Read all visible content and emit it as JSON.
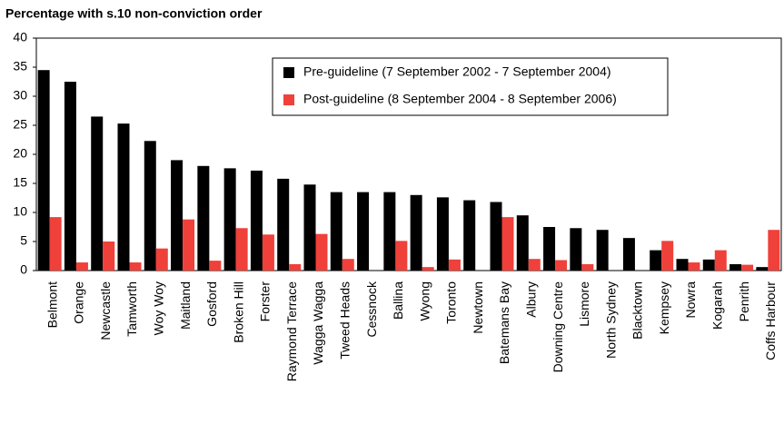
{
  "chart_data": {
    "type": "bar",
    "title": "Percentage with s.10 non-conviction order",
    "categories": [
      "Belmont",
      "Orange",
      "Newcastle",
      "Tamworth",
      "Woy Woy",
      "Maitland",
      "Gosford",
      "Broken Hill",
      "Forster",
      "Raymond Terrace",
      "Wagga Wagga",
      "Tweed Heads",
      "Cessnock",
      "Ballina",
      "Wyong",
      "Toronto",
      "Newtown",
      "Batemans Bay",
      "Albury",
      "Downing Centre",
      "Lismore",
      "North Sydney",
      "Blacktown",
      "Kempsey",
      "Nowra",
      "Kogarah",
      "Penrith",
      "Coffs Harbour"
    ],
    "series": [
      {
        "name": "Pre-guideline (7 September 2002 - 7 September 2004)",
        "color": "#000000",
        "values": [
          34.5,
          32.5,
          26.5,
          25.3,
          22.3,
          19,
          18,
          17.6,
          17.2,
          15.8,
          14.8,
          13.5,
          13.5,
          13.5,
          13,
          12.6,
          12.1,
          11.8,
          9.5,
          7.5,
          7.3,
          7,
          5.6,
          3.5,
          2,
          1.9,
          1.1,
          0.6
        ]
      },
      {
        "name": "Post-guideline (8 September 2004 - 8 September 2006)",
        "color": "#f0403a",
        "values": [
          9.2,
          1.4,
          5,
          1.4,
          3.8,
          8.8,
          1.7,
          7.3,
          6.2,
          1.1,
          6.3,
          2,
          0,
          5.1,
          0.6,
          1.9,
          0,
          9.2,
          2,
          1.8,
          1.1,
          0,
          0,
          5.1,
          1.4,
          3.5,
          1,
          7
        ]
      }
    ],
    "ylim": [
      0,
      40
    ],
    "yticks": [
      0,
      5,
      10,
      15,
      20,
      25,
      30,
      35,
      40
    ],
    "grid": false
  }
}
